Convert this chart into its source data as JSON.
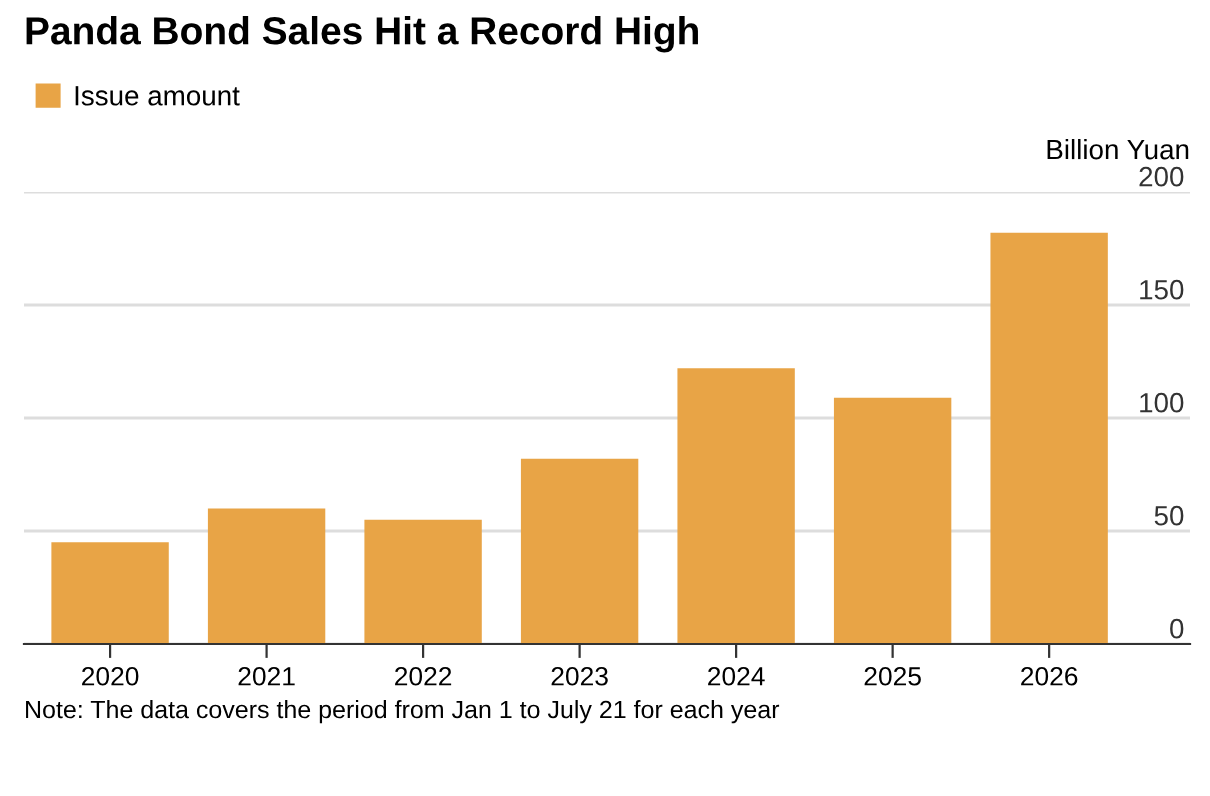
{
  "chart_data": {
    "type": "bar",
    "title": "Panda Bond Sales Hit a Record High",
    "ylabel": "Billion Yuan",
    "categories": [
      "2020",
      "2021",
      "2022",
      "2023",
      "2024",
      "2025",
      "2026"
    ],
    "series": [
      {
        "name": "Issue amount",
        "color": "#e8a446",
        "values": [
          45,
          60,
          55,
          82,
          122,
          109,
          182
        ]
      }
    ],
    "ylim": [
      0,
      200
    ],
    "yticks": [
      0,
      50,
      100,
      150,
      200
    ],
    "grid": "y",
    "legend": "top left",
    "annotations": [
      "Note: The data covers the period from Jan 1 to July 21 for each year"
    ]
  }
}
